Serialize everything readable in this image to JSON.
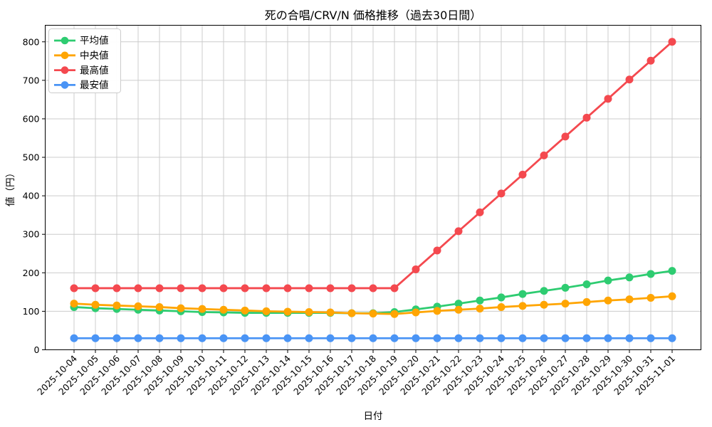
{
  "chart_data": {
    "type": "line",
    "title": "死の合唱/CRV/N 価格推移（過去30日間）",
    "xlabel": "日付",
    "ylabel": "値（円）",
    "x": [
      "2025-10-04",
      "2025-10-05",
      "2025-10-06",
      "2025-10-07",
      "2025-10-08",
      "2025-10-09",
      "2025-10-10",
      "2025-10-11",
      "2025-10-12",
      "2025-10-13",
      "2025-10-14",
      "2025-10-15",
      "2025-10-16",
      "2025-10-17",
      "2025-10-18",
      "2025-10-19",
      "2025-10-20",
      "2025-10-21",
      "2025-10-22",
      "2025-10-23",
      "2025-10-24",
      "2025-10-25",
      "2025-10-26",
      "2025-10-27",
      "2025-10-28",
      "2025-10-29",
      "2025-10-30",
      "2025-10-31",
      "2025-11-01"
    ],
    "series": [
      {
        "key": "average",
        "name": "平均値",
        "color": "#2ecc71",
        "values": [
          111,
          108,
          106,
          104,
          102,
          100,
          98,
          97,
          96,
          96,
          96,
          96,
          96,
          95,
          95,
          98,
          105,
          112,
          120,
          128,
          136,
          145,
          153,
          161,
          170,
          180,
          188,
          197,
          205
        ]
      },
      {
        "key": "median",
        "name": "中央値",
        "color": "#ffa502",
        "values": [
          120,
          117,
          115,
          113,
          111,
          108,
          106,
          104,
          102,
          100,
          99,
          98,
          97,
          95,
          94,
          93,
          97,
          101,
          104,
          107,
          111,
          114,
          117,
          120,
          124,
          128,
          131,
          135,
          139
        ]
      },
      {
        "key": "max",
        "name": "最高値",
        "color": "#f4494f",
        "values": [
          160,
          160,
          160,
          160,
          160,
          160,
          160,
          160,
          160,
          160,
          160,
          160,
          160,
          160,
          160,
          160,
          209,
          258,
          308,
          357,
          406,
          455,
          505,
          554,
          603,
          652,
          702,
          751,
          800
        ]
      },
      {
        "key": "min",
        "name": "最安値",
        "color": "#4a94f5",
        "values": [
          30,
          30,
          30,
          30,
          30,
          30,
          30,
          30,
          30,
          30,
          30,
          30,
          30,
          30,
          30,
          30,
          30,
          30,
          30,
          30,
          30,
          30,
          30,
          30,
          30,
          30,
          30,
          30,
          30
        ]
      }
    ],
    "ylim": [
      0,
      843
    ],
    "yticks": [
      0,
      100,
      200,
      300,
      400,
      500,
      600,
      700,
      800
    ],
    "grid": true,
    "grid_color": "#cccccc",
    "spine_color": "#000000",
    "background": "#ffffff",
    "legend_position": "upper-left"
  }
}
